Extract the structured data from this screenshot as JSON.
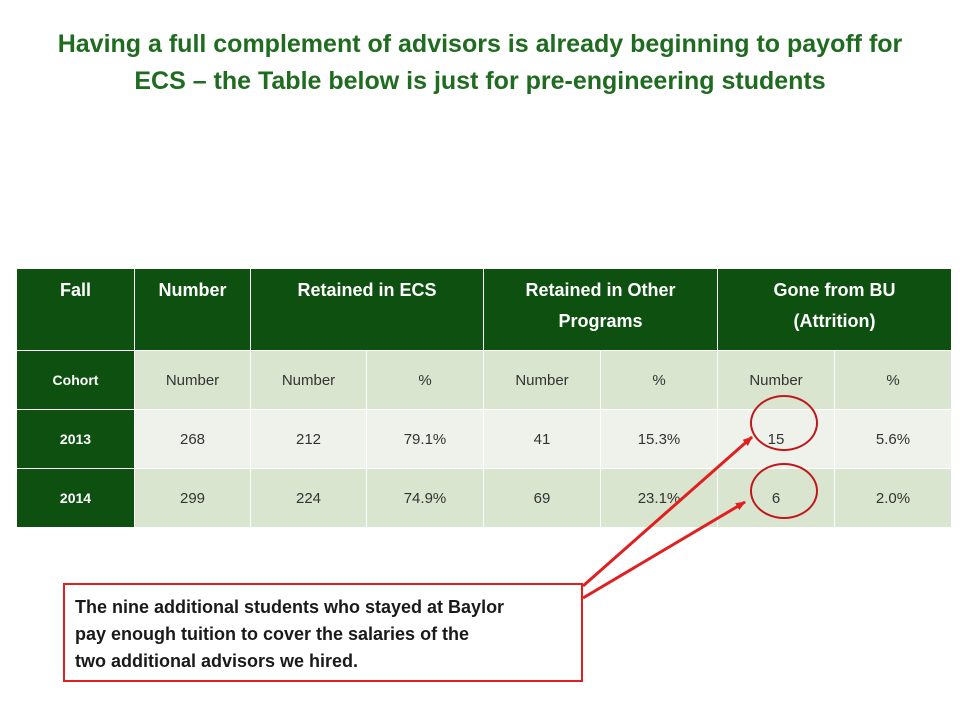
{
  "title": {
    "line1": "Having a full complement of advisors is already beginning to payoff for",
    "line2": "ECS – the Table below is just for pre-engineering students"
  },
  "table": {
    "headers": {
      "fall": "Fall",
      "number": "Number",
      "retained_ecs": "Retained in ECS",
      "retained_other_1": "Retained in Other",
      "retained_other_2": "Programs",
      "gone_1": "Gone from BU",
      "gone_2": "(Attrition)"
    },
    "subheader": [
      "Cohort",
      "Number",
      "Number",
      "%",
      "Number",
      "%",
      "Number",
      "%"
    ],
    "rows": [
      [
        "2013",
        "268",
        "212",
        "79.1%",
        "41",
        "15.3%",
        "15",
        "5.6%"
      ],
      [
        "2014",
        "299",
        "224",
        "74.9%",
        "69",
        "23.1%",
        "6",
        "2.0%"
      ]
    ]
  },
  "callout": {
    "line1": "The nine additional students who stayed at Baylor",
    "line2": "pay enough tuition to cover the salaries of the",
    "line3": "two additional advisors we hired."
  },
  "colors": {
    "title_green": "#1f6b1f",
    "header_green": "#0e5010",
    "highlight_red": "#c0171c"
  }
}
